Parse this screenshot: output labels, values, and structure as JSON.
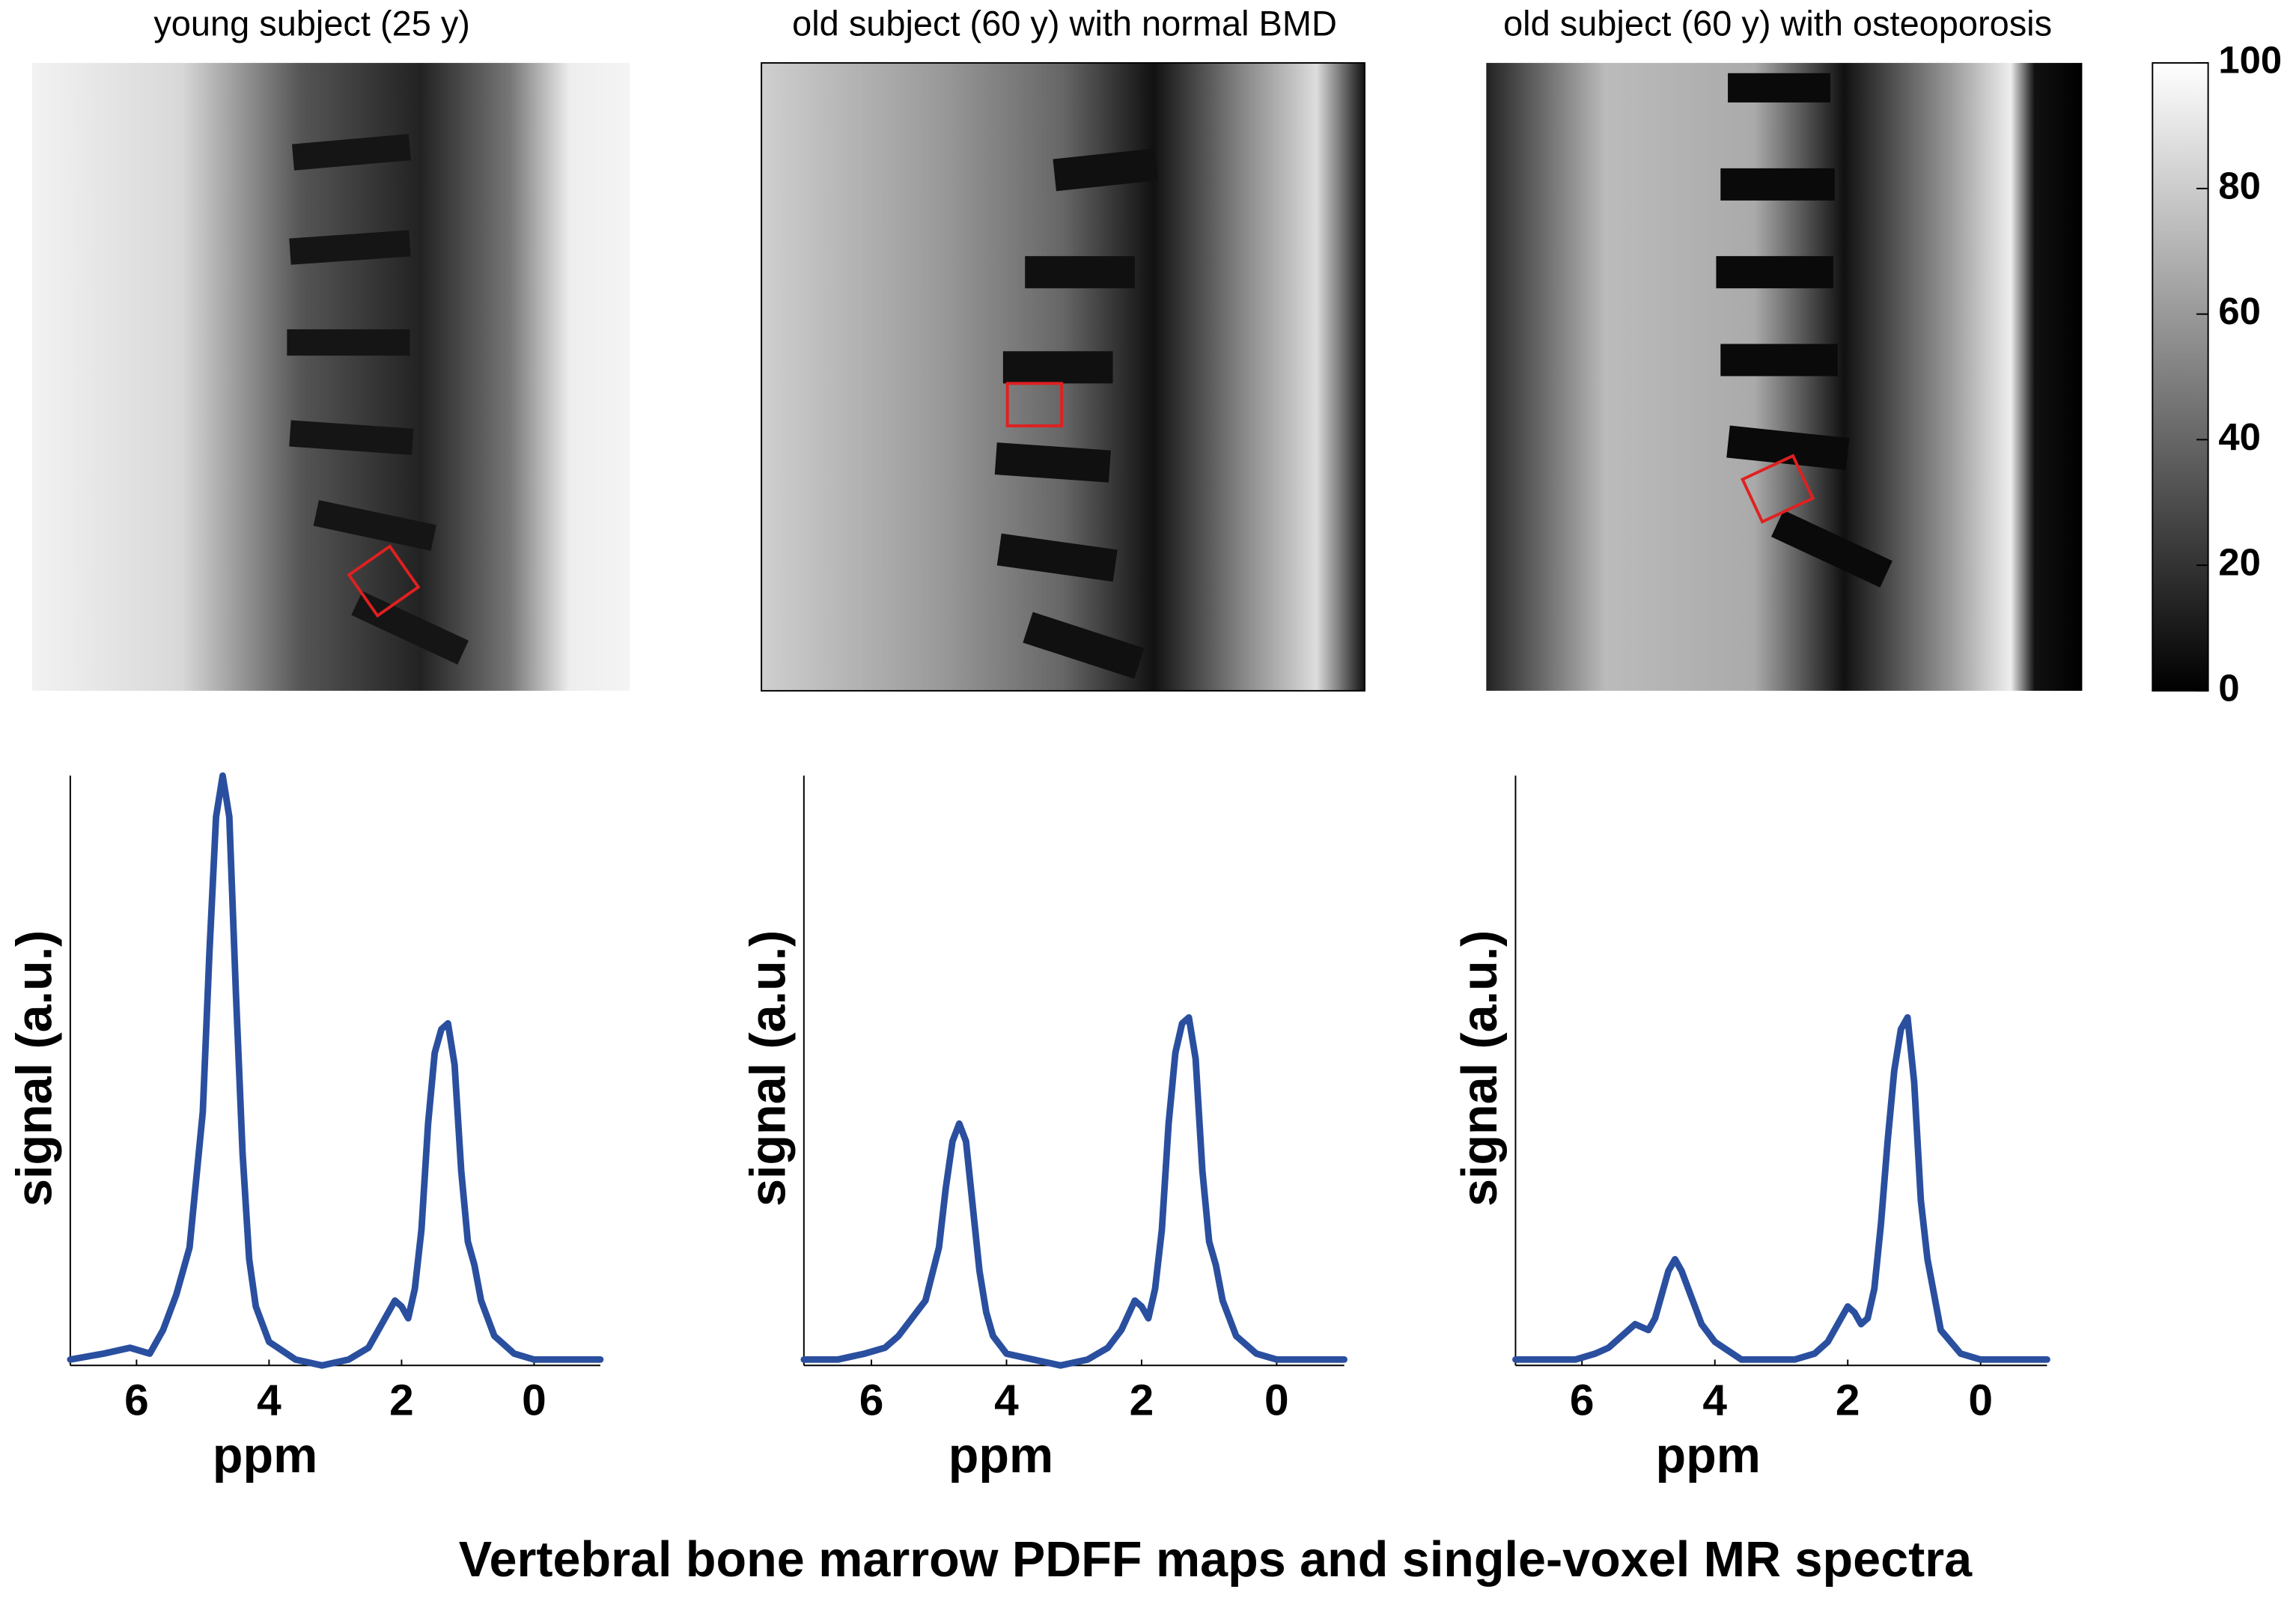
{
  "title": "Vertebral bone marrow PDFF maps and single-voxel MR spectra",
  "colorbar": {
    "ylim": [
      0,
      100
    ],
    "yticks": [
      0,
      20,
      40,
      60,
      80,
      100
    ]
  },
  "chart_data": [
    {
      "type": "line",
      "title": "young subject (25 y)",
      "xlabel": "ppm",
      "ylabel": "signal (a.u.)",
      "xlim": [
        7,
        -1
      ],
      "xticks": [
        6,
        4,
        2,
        0
      ],
      "ylim": [
        0,
        100
      ],
      "x": [
        7,
        6.5,
        6.1,
        5.8,
        5.6,
        5.4,
        5.2,
        5.0,
        4.9,
        4.8,
        4.7,
        4.6,
        4.5,
        4.4,
        4.3,
        4.2,
        4.0,
        3.6,
        3.2,
        2.8,
        2.5,
        2.3,
        2.1,
        2.0,
        1.9,
        1.8,
        1.7,
        1.6,
        1.5,
        1.4,
        1.3,
        1.2,
        1.1,
        1.0,
        0.9,
        0.8,
        0.6,
        0.3,
        0,
        -0.5,
        -1
      ],
      "series": [
        {
          "color": "#2a4f9f",
          "values": [
            1,
            2,
            3,
            2,
            6,
            12,
            20,
            43,
            70,
            93,
            100,
            93,
            63,
            36,
            18,
            10,
            4,
            1,
            0,
            1,
            3,
            7,
            11,
            10,
            8,
            13,
            23,
            41,
            53,
            57,
            58,
            51,
            33,
            21,
            17,
            11,
            5,
            2,
            1,
            1,
            1
          ]
        }
      ]
    },
    {
      "type": "line",
      "title": "old subject (60 y) with normal BMD",
      "xlabel": "ppm",
      "ylabel": "signal (a.u.)",
      "xlim": [
        7,
        -1
      ],
      "xticks": [
        6,
        4,
        2,
        0
      ],
      "ylim": [
        0,
        100
      ],
      "x": [
        7,
        6.5,
        6.1,
        5.8,
        5.6,
        5.4,
        5.2,
        5.0,
        4.9,
        4.8,
        4.7,
        4.6,
        4.5,
        4.4,
        4.3,
        4.2,
        4.0,
        3.6,
        3.2,
        2.8,
        2.5,
        2.3,
        2.1,
        2.0,
        1.9,
        1.8,
        1.7,
        1.6,
        1.5,
        1.4,
        1.3,
        1.2,
        1.1,
        1.0,
        0.9,
        0.8,
        0.6,
        0.3,
        0,
        -0.5,
        -1
      ],
      "series": [
        {
          "color": "#2a4f9f",
          "values": [
            1,
            1,
            2,
            3,
            5,
            8,
            11,
            20,
            30,
            38,
            41,
            38,
            27,
            16,
            9,
            5,
            2,
            1,
            0,
            1,
            3,
            6,
            11,
            10,
            8,
            13,
            23,
            41,
            53,
            58,
            59,
            52,
            33,
            21,
            17,
            11,
            5,
            2,
            1,
            1,
            1
          ]
        }
      ]
    },
    {
      "type": "line",
      "title": "old subject (60 y) with osteoporosis",
      "xlabel": "ppm",
      "ylabel": "signal (a.u.)",
      "xlim": [
        7,
        -1
      ],
      "xticks": [
        6,
        4,
        2,
        0
      ],
      "ylim": [
        0,
        100
      ],
      "x": [
        7,
        6.5,
        6.1,
        5.8,
        5.6,
        5.4,
        5.2,
        5.0,
        4.9,
        4.8,
        4.7,
        4.6,
        4.5,
        4.4,
        4.3,
        4.2,
        4.0,
        3.6,
        3.2,
        2.8,
        2.5,
        2.3,
        2.1,
        2.0,
        1.9,
        1.8,
        1.7,
        1.6,
        1.5,
        1.4,
        1.3,
        1.2,
        1.1,
        1.0,
        0.9,
        0.8,
        0.6,
        0.3,
        0,
        -0.5,
        -1
      ],
      "series": [
        {
          "color": "#2a4f9f",
          "values": [
            1,
            1,
            1,
            2,
            3,
            5,
            7,
            6,
            8,
            12,
            16,
            18,
            16,
            13,
            10,
            7,
            4,
            1,
            1,
            1,
            2,
            4,
            8,
            10,
            9,
            7,
            8,
            13,
            24,
            38,
            50,
            57,
            59,
            48,
            28,
            18,
            6,
            2,
            1,
            1,
            1
          ]
        }
      ]
    }
  ]
}
